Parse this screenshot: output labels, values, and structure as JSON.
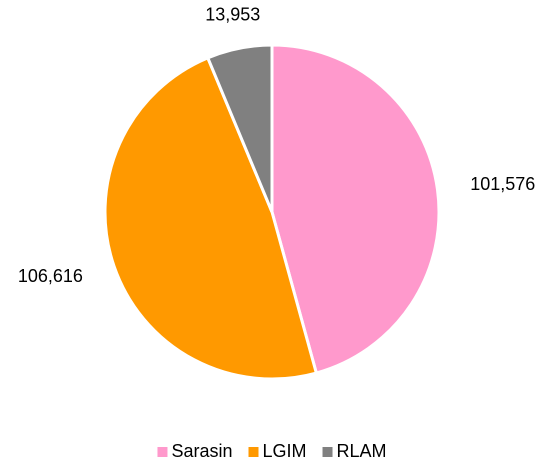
{
  "chart_data": {
    "type": "pie",
    "categories": [
      "Sarasin",
      "LGIM",
      "RLAM"
    ],
    "values": [
      101576,
      106616,
      13953
    ],
    "value_labels": [
      "101,576",
      "106,616",
      "13,953"
    ],
    "colors": [
      "#ff99cc",
      "#ff9900",
      "#808080"
    ],
    "legend": "bottom"
  }
}
